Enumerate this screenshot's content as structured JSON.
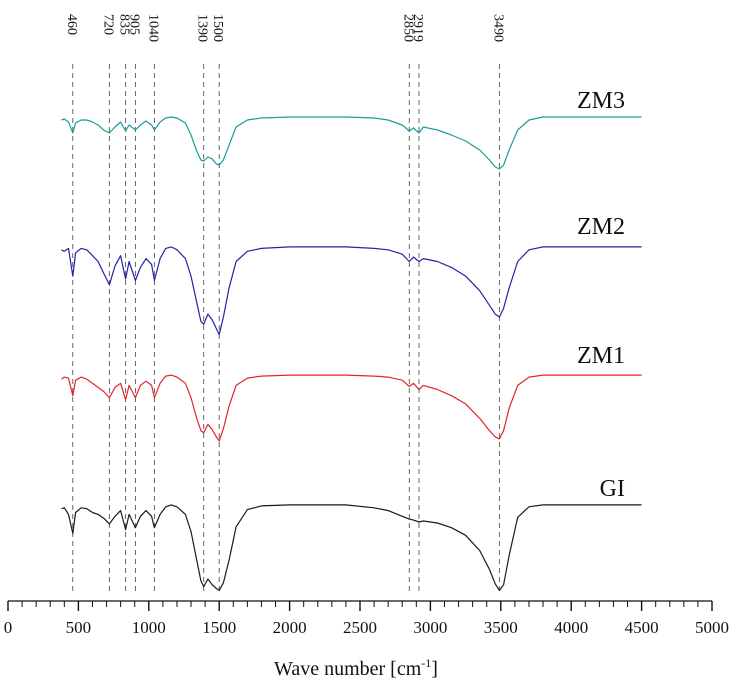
{
  "chart_data": {
    "type": "line",
    "title": "",
    "xlabel": "Wave number [cm",
    "xlabel_sup": "-1",
    "xlabel_end": "]",
    "ylabel": "",
    "xlim": [
      0,
      5000
    ],
    "x_ticks": [
      "0",
      "500",
      "1000",
      "1500",
      "2000",
      "2500",
      "3000",
      "3500",
      "4000",
      "4500",
      "5000"
    ],
    "x_tick_values": [
      0,
      500,
      1000,
      1500,
      2000,
      2500,
      3000,
      3500,
      4000,
      4500,
      5000
    ],
    "grid": false,
    "legend": "inline labels at right end of each spectrum",
    "peak_markers": [
      {
        "value": 460,
        "label": "460"
      },
      {
        "value": 720,
        "label": "720"
      },
      {
        "value": 835,
        "label": "835"
      },
      {
        "value": 905,
        "label": "905"
      },
      {
        "value": 1040,
        "label": "1040"
      },
      {
        "value": 1390,
        "label": "1390"
      },
      {
        "value": 1500,
        "label": "1500"
      },
      {
        "value": 2850,
        "label": "2850"
      },
      {
        "value": 2919,
        "label": "2919"
      },
      {
        "value": 3490,
        "label": "3490"
      }
    ],
    "series": [
      {
        "name": "ZM3",
        "color": "#1a9e96",
        "x": [
          380,
          400,
          430,
          460,
          480,
          520,
          560,
          600,
          640,
          680,
          720,
          760,
          800,
          835,
          860,
          905,
          940,
          980,
          1020,
          1040,
          1080,
          1120,
          1160,
          1200,
          1260,
          1300,
          1340,
          1370,
          1390,
          1420,
          1450,
          1480,
          1500,
          1530,
          1570,
          1620,
          1700,
          1800,
          2000,
          2200,
          2400,
          2600,
          2700,
          2800,
          2850,
          2880,
          2919,
          2950,
          3050,
          3150,
          3250,
          3350,
          3420,
          3460,
          3490,
          3520,
          3560,
          3620,
          3700,
          3800,
          4000,
          4500
        ],
        "y": [
          0.95,
          0.96,
          0.93,
          0.82,
          0.92,
          0.95,
          0.95,
          0.93,
          0.9,
          0.85,
          0.82,
          0.88,
          0.93,
          0.84,
          0.9,
          0.85,
          0.9,
          0.94,
          0.9,
          0.85,
          0.93,
          0.97,
          0.98,
          0.97,
          0.92,
          0.8,
          0.64,
          0.55,
          0.54,
          0.58,
          0.56,
          0.51,
          0.5,
          0.55,
          0.7,
          0.88,
          0.95,
          0.97,
          0.98,
          0.98,
          0.98,
          0.97,
          0.95,
          0.9,
          0.84,
          0.87,
          0.82,
          0.88,
          0.85,
          0.8,
          0.74,
          0.65,
          0.55,
          0.48,
          0.46,
          0.5,
          0.65,
          0.85,
          0.95,
          0.98,
          0.98,
          0.98
        ]
      },
      {
        "name": "ZM2",
        "color": "#2323a8",
        "x": [
          380,
          400,
          430,
          460,
          480,
          520,
          560,
          600,
          640,
          680,
          720,
          760,
          800,
          835,
          860,
          905,
          940,
          980,
          1020,
          1040,
          1080,
          1120,
          1160,
          1200,
          1260,
          1300,
          1340,
          1370,
          1390,
          1420,
          1450,
          1480,
          1500,
          1530,
          1570,
          1620,
          1700,
          1800,
          2000,
          2200,
          2400,
          2600,
          2700,
          2800,
          2850,
          2880,
          2919,
          2950,
          3050,
          3150,
          3250,
          3350,
          3420,
          3460,
          3490,
          3520,
          3560,
          3620,
          3700,
          3800,
          4000,
          4500
        ],
        "y": [
          0.96,
          0.95,
          0.97,
          0.78,
          0.94,
          0.97,
          0.96,
          0.92,
          0.88,
          0.8,
          0.72,
          0.85,
          0.92,
          0.76,
          0.88,
          0.75,
          0.84,
          0.9,
          0.86,
          0.75,
          0.9,
          0.97,
          0.98,
          0.96,
          0.9,
          0.78,
          0.6,
          0.47,
          0.45,
          0.52,
          0.48,
          0.42,
          0.38,
          0.5,
          0.7,
          0.88,
          0.95,
          0.97,
          0.98,
          0.98,
          0.98,
          0.97,
          0.96,
          0.93,
          0.88,
          0.91,
          0.88,
          0.9,
          0.88,
          0.84,
          0.78,
          0.68,
          0.58,
          0.52,
          0.5,
          0.56,
          0.7,
          0.88,
          0.96,
          0.98,
          0.98,
          0.98
        ]
      },
      {
        "name": "ZM1",
        "color": "#e0262d",
        "x": [
          380,
          400,
          430,
          460,
          480,
          520,
          560,
          600,
          640,
          680,
          720,
          760,
          800,
          835,
          860,
          905,
          940,
          980,
          1020,
          1040,
          1080,
          1120,
          1160,
          1200,
          1260,
          1300,
          1340,
          1370,
          1390,
          1420,
          1450,
          1480,
          1500,
          1530,
          1570,
          1620,
          1700,
          1800,
          2000,
          2200,
          2400,
          2600,
          2700,
          2800,
          2850,
          2880,
          2919,
          2950,
          3050,
          3150,
          3250,
          3350,
          3420,
          3460,
          3490,
          3520,
          3560,
          3620,
          3700,
          3800,
          4000,
          4500
        ],
        "y": [
          0.94,
          0.96,
          0.95,
          0.78,
          0.93,
          0.96,
          0.94,
          0.9,
          0.86,
          0.82,
          0.76,
          0.86,
          0.9,
          0.74,
          0.88,
          0.76,
          0.88,
          0.92,
          0.88,
          0.76,
          0.9,
          0.97,
          0.98,
          0.96,
          0.9,
          0.76,
          0.56,
          0.44,
          0.42,
          0.5,
          0.45,
          0.38,
          0.34,
          0.46,
          0.68,
          0.88,
          0.95,
          0.97,
          0.98,
          0.98,
          0.98,
          0.97,
          0.96,
          0.93,
          0.87,
          0.9,
          0.84,
          0.88,
          0.84,
          0.78,
          0.7,
          0.56,
          0.44,
          0.38,
          0.36,
          0.44,
          0.66,
          0.88,
          0.96,
          0.98,
          0.98,
          0.98
        ]
      },
      {
        "name": "GI",
        "color": "#1a1a1a",
        "x": [
          380,
          400,
          430,
          460,
          480,
          520,
          560,
          600,
          640,
          680,
          720,
          760,
          800,
          835,
          860,
          905,
          940,
          980,
          1020,
          1040,
          1080,
          1120,
          1160,
          1200,
          1260,
          1300,
          1340,
          1370,
          1390,
          1420,
          1450,
          1480,
          1500,
          1530,
          1570,
          1620,
          1700,
          1800,
          2000,
          2200,
          2400,
          2600,
          2700,
          2800,
          2850,
          2880,
          2919,
          2950,
          3050,
          3150,
          3250,
          3350,
          3420,
          3460,
          3490,
          3520,
          3560,
          3620,
          3700,
          3800,
          4000,
          4500
        ],
        "y": [
          0.94,
          0.95,
          0.88,
          0.68,
          0.9,
          0.95,
          0.94,
          0.9,
          0.88,
          0.84,
          0.78,
          0.86,
          0.92,
          0.72,
          0.88,
          0.74,
          0.86,
          0.92,
          0.86,
          0.74,
          0.88,
          0.96,
          0.98,
          0.96,
          0.88,
          0.7,
          0.4,
          0.18,
          0.12,
          0.2,
          0.14,
          0.1,
          0.08,
          0.16,
          0.4,
          0.75,
          0.93,
          0.97,
          0.98,
          0.98,
          0.98,
          0.95,
          0.92,
          0.86,
          0.83,
          0.82,
          0.8,
          0.81,
          0.79,
          0.74,
          0.66,
          0.5,
          0.3,
          0.15,
          0.08,
          0.14,
          0.45,
          0.85,
          0.96,
          0.98,
          0.98,
          0.98
        ]
      }
    ]
  }
}
